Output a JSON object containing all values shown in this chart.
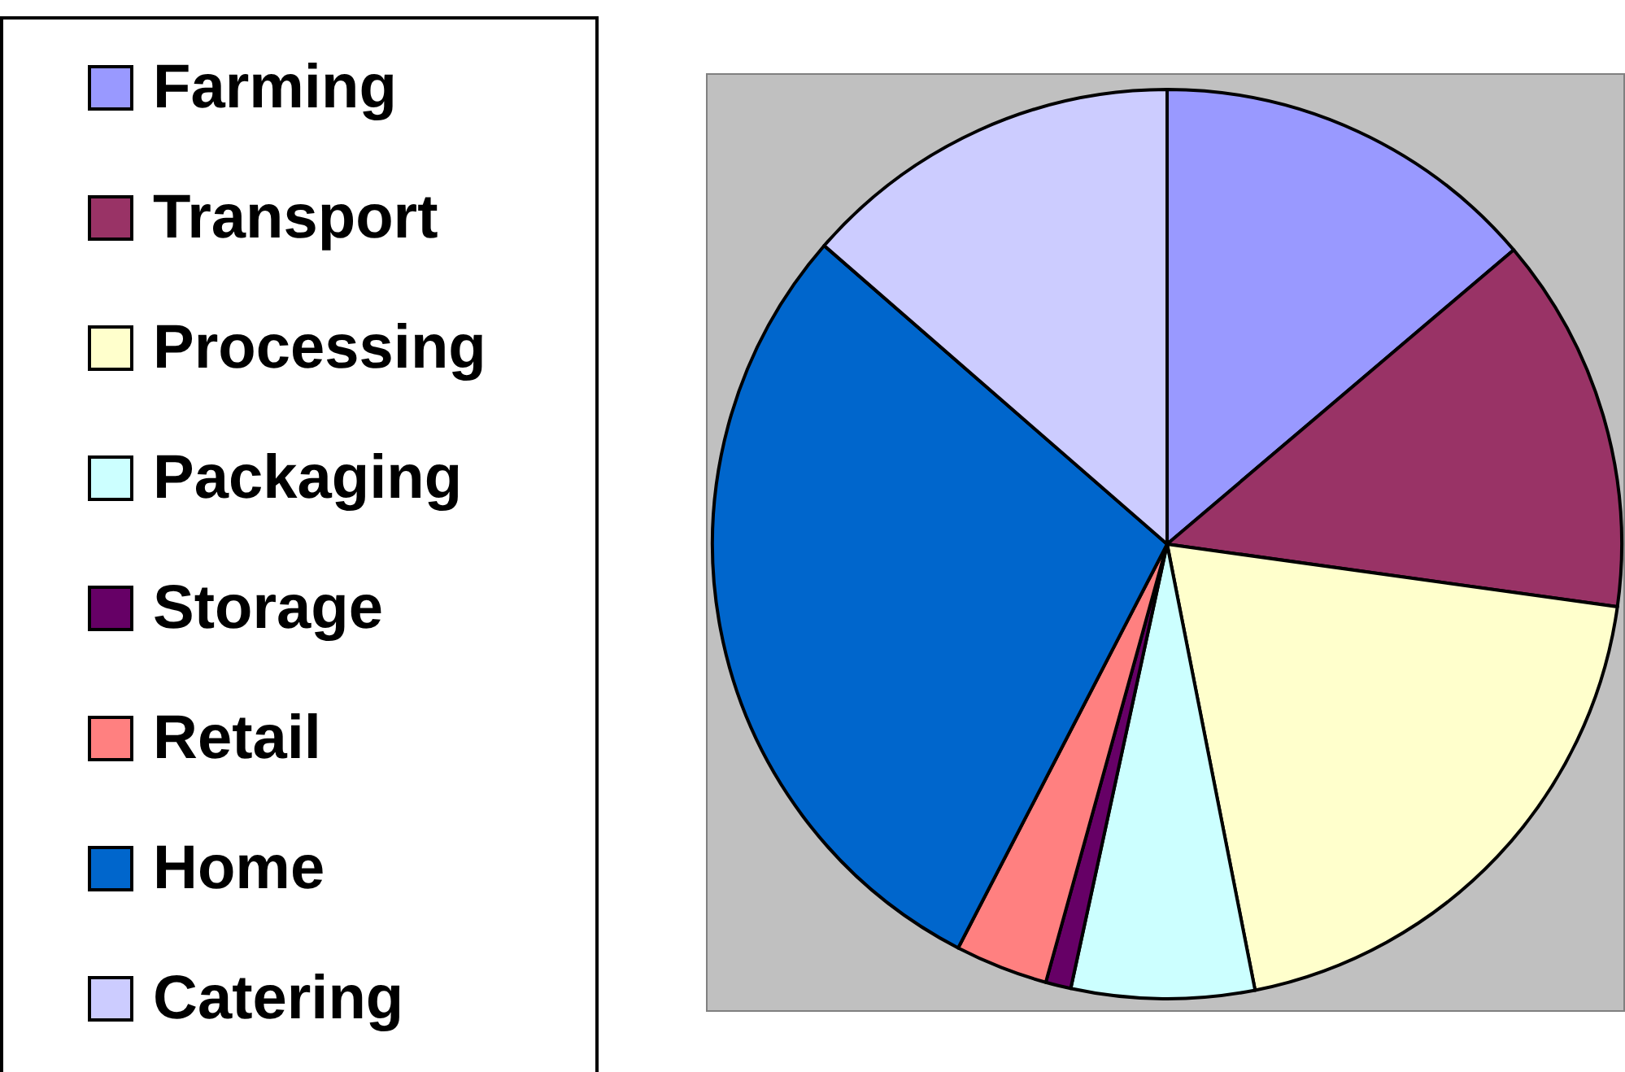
{
  "chart_data": {
    "type": "pie",
    "legend": "left",
    "categories": [
      "Farming",
      "Transport",
      "Processing",
      "Packaging",
      "Storage",
      "Retail",
      "Home",
      "Catering"
    ],
    "values": [
      13.8,
      13.4,
      19.7,
      6.5,
      0.9,
      3.3,
      28.8,
      13.6
    ],
    "colors": [
      "#9999ff",
      "#993366",
      "#ffffcc",
      "#ccffff",
      "#660066",
      "#ff8080",
      "#0066cc",
      "#ccccff"
    ]
  }
}
